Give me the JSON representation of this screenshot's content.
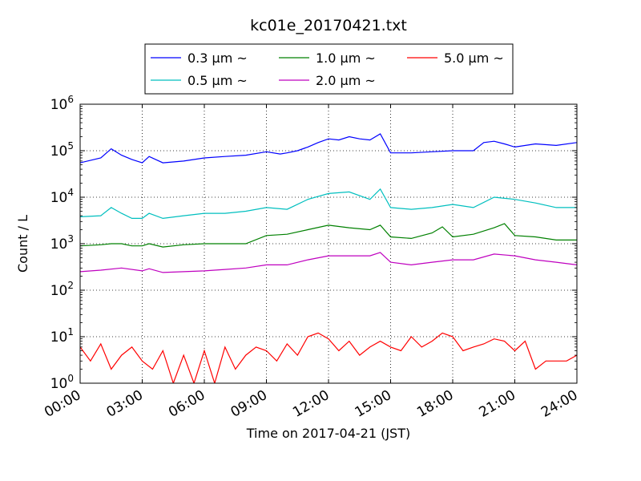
{
  "chart_data": {
    "type": "line",
    "title": "kc01e_20170421.txt",
    "xlabel": "Time on 2017-04-21 (JST)",
    "ylabel": "Count / L",
    "y_scale": "log",
    "ylim": [
      1,
      1000000
    ],
    "xlim_hours": [
      0,
      24
    ],
    "x_tick_labels": [
      "00:00",
      "03:00",
      "06:00",
      "09:00",
      "12:00",
      "15:00",
      "18:00",
      "21:00",
      "24:00"
    ],
    "y_tick_labels": [
      {
        "base": "10",
        "exp": "0"
      },
      {
        "base": "10",
        "exp": "1"
      },
      {
        "base": "10",
        "exp": "2"
      },
      {
        "base": "10",
        "exp": "3"
      },
      {
        "base": "10",
        "exp": "4"
      },
      {
        "base": "10",
        "exp": "5"
      },
      {
        "base": "10",
        "exp": "6"
      }
    ],
    "grid": true,
    "legend_position": "top-center (outside, above plot)",
    "series": [
      {
        "name": "0.3 μm ~",
        "color": "#0000ff",
        "x": [
          "00:00",
          "01:00",
          "01:30",
          "02:00",
          "02:30",
          "03:00",
          "03:20",
          "04:00",
          "05:00",
          "06:00",
          "07:00",
          "08:00",
          "09:00",
          "09:40",
          "10:00",
          "10:30",
          "11:00",
          "11:30",
          "12:00",
          "12:30",
          "13:00",
          "13:30",
          "14:00",
          "14:30",
          "15:00",
          "16:00",
          "17:00",
          "18:00",
          "19:00",
          "19:30",
          "20:00",
          "20:30",
          "21:00",
          "22:00",
          "23:00",
          "24:00"
        ],
        "values": [
          55000,
          70000,
          110000,
          80000,
          65000,
          55000,
          75000,
          55000,
          60000,
          70000,
          75000,
          80000,
          95000,
          85000,
          90000,
          100000,
          120000,
          150000,
          180000,
          170000,
          200000,
          180000,
          170000,
          230000,
          90000,
          90000,
          95000,
          100000,
          100000,
          150000,
          160000,
          140000,
          120000,
          140000,
          130000,
          150000
        ]
      },
      {
        "name": "0.5 μm ~",
        "color": "#00bfbf",
        "x": [
          "00:00",
          "01:00",
          "01:30",
          "02:00",
          "02:30",
          "03:00",
          "03:20",
          "04:00",
          "05:00",
          "06:00",
          "07:00",
          "08:00",
          "09:00",
          "10:00",
          "11:00",
          "12:00",
          "13:00",
          "14:00",
          "14:30",
          "15:00",
          "16:00",
          "17:00",
          "18:00",
          "19:00",
          "20:00",
          "21:00",
          "22:00",
          "23:00",
          "24:00"
        ],
        "values": [
          3800,
          4000,
          6000,
          4500,
          3500,
          3500,
          4500,
          3500,
          4000,
          4500,
          4500,
          5000,
          6000,
          5500,
          9000,
          12000,
          13000,
          9000,
          15000,
          6000,
          5500,
          6000,
          7000,
          6000,
          10000,
          9000,
          7500,
          6000,
          6000
        ]
      },
      {
        "name": "1.0 μm ~",
        "color": "#008000",
        "x": [
          "00:00",
          "01:00",
          "01:30",
          "02:00",
          "02:30",
          "03:00",
          "03:20",
          "04:00",
          "05:00",
          "06:00",
          "07:00",
          "08:00",
          "09:00",
          "10:00",
          "11:00",
          "12:00",
          "13:00",
          "14:00",
          "14:30",
          "15:00",
          "16:00",
          "17:00",
          "17:30",
          "18:00",
          "19:00",
          "20:00",
          "20:30",
          "21:00",
          "22:00",
          "23:00",
          "24:00"
        ],
        "values": [
          900,
          950,
          1000,
          1000,
          900,
          900,
          1000,
          850,
          950,
          1000,
          1000,
          1000,
          1500,
          1600,
          2000,
          2500,
          2200,
          2000,
          2500,
          1400,
          1300,
          1700,
          2300,
          1400,
          1600,
          2200,
          2700,
          1500,
          1400,
          1200,
          1200
        ]
      },
      {
        "name": "2.0 μm ~",
        "color": "#bf00bf",
        "x": [
          "00:00",
          "01:00",
          "02:00",
          "03:00",
          "03:20",
          "04:00",
          "05:00",
          "06:00",
          "07:00",
          "08:00",
          "09:00",
          "10:00",
          "11:00",
          "12:00",
          "13:00",
          "14:00",
          "14:30",
          "15:00",
          "16:00",
          "17:00",
          "18:00",
          "19:00",
          "20:00",
          "21:00",
          "22:00",
          "23:00",
          "24:00"
        ],
        "values": [
          250,
          270,
          300,
          260,
          290,
          240,
          250,
          260,
          280,
          300,
          350,
          350,
          450,
          550,
          550,
          550,
          650,
          400,
          350,
          400,
          450,
          450,
          600,
          550,
          450,
          400,
          350
        ]
      },
      {
        "name": "5.0 μm ~",
        "color": "#ff0000",
        "x": [
          "00:00",
          "00:30",
          "01:00",
          "01:30",
          "02:00",
          "02:30",
          "03:00",
          "03:30",
          "04:00",
          "04:30",
          "05:00",
          "05:30",
          "06:00",
          "06:30",
          "07:00",
          "07:30",
          "08:00",
          "08:30",
          "09:00",
          "09:30",
          "10:00",
          "10:30",
          "11:00",
          "11:30",
          "12:00",
          "12:30",
          "13:00",
          "13:30",
          "14:00",
          "14:30",
          "15:00",
          "15:30",
          "16:00",
          "16:30",
          "17:00",
          "17:30",
          "18:00",
          "18:30",
          "19:00",
          "19:30",
          "20:00",
          "20:30",
          "21:00",
          "21:30",
          "22:00",
          "22:30",
          "23:00",
          "23:30",
          "24:00"
        ],
        "values": [
          6,
          3,
          7,
          2,
          4,
          6,
          3,
          2,
          5,
          1,
          4,
          1,
          5,
          1,
          6,
          2,
          4,
          6,
          5,
          3,
          7,
          4,
          10,
          12,
          9,
          5,
          8,
          4,
          6,
          8,
          6,
          5,
          10,
          6,
          8,
          12,
          10,
          5,
          6,
          7,
          9,
          8,
          5,
          8,
          2,
          3,
          3,
          3,
          4
        ]
      }
    ]
  }
}
